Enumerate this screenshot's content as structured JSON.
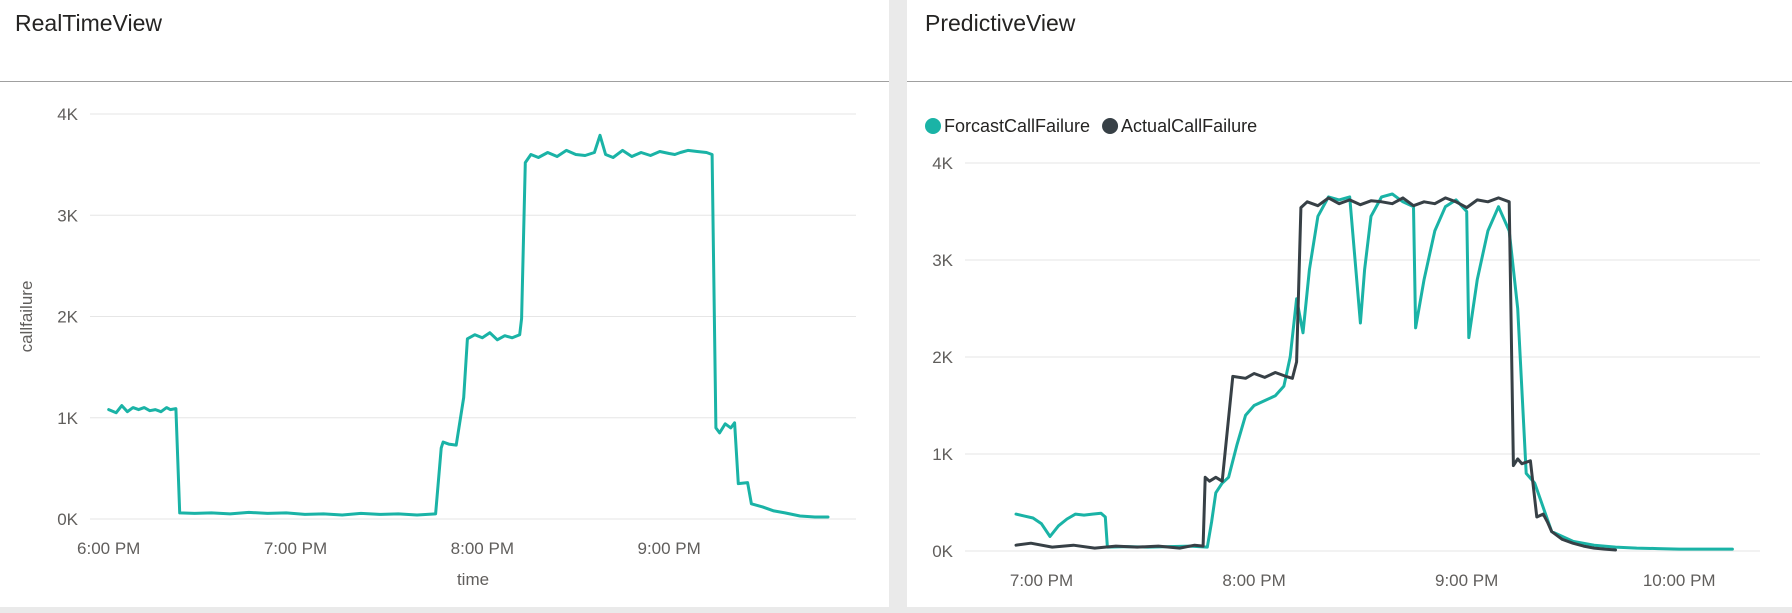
{
  "colors": {
    "forecast": "#1ab3a6",
    "actual": "#374046"
  },
  "chart_data": [
    {
      "type": "line",
      "title": "RealTimeView",
      "xlabel": "time",
      "ylabel": "callfailure",
      "x_tick_labels": [
        "6:00 PM",
        "7:00 PM",
        "8:00 PM",
        "9:00 PM"
      ],
      "x_tick_hours": [
        18,
        19,
        20,
        21
      ],
      "y_tick_labels": [
        "0K",
        "1K",
        "2K",
        "3K",
        "4K"
      ],
      "y_ticks": [
        0,
        1000,
        2000,
        3000,
        4000
      ],
      "xlim": [
        17.9,
        22.0
      ],
      "ylim": [
        0,
        4000
      ],
      "grid": true,
      "legend": "none",
      "series": [
        {
          "color": "#1ab3a6",
          "x": [
            18.0,
            18.04,
            18.07,
            18.1,
            18.13,
            18.16,
            18.19,
            18.22,
            18.25,
            18.28,
            18.31,
            18.33,
            18.36,
            18.38,
            18.46,
            18.55,
            18.65,
            18.75,
            18.85,
            18.95,
            19.05,
            19.15,
            19.25,
            19.35,
            19.45,
            19.55,
            19.65,
            19.75,
            19.78,
            19.79,
            19.82,
            19.86,
            19.9,
            19.92,
            19.96,
            20.0,
            20.04,
            20.08,
            20.12,
            20.16,
            20.2,
            20.21,
            20.23,
            20.26,
            20.3,
            20.35,
            20.4,
            20.45,
            20.5,
            20.55,
            20.6,
            20.63,
            20.66,
            20.7,
            20.75,
            20.8,
            20.85,
            20.9,
            20.95,
            21.0,
            21.03,
            21.06,
            21.1,
            21.15,
            21.2,
            21.23,
            21.25,
            21.27,
            21.3,
            21.33,
            21.35,
            21.37,
            21.42,
            21.44,
            21.5,
            21.56,
            21.62,
            21.7,
            21.78,
            21.85
          ],
          "y": [
            1080,
            1050,
            1120,
            1060,
            1100,
            1080,
            1100,
            1070,
            1080,
            1060,
            1100,
            1080,
            1090,
            60,
            55,
            60,
            50,
            65,
            55,
            60,
            45,
            50,
            40,
            55,
            45,
            50,
            40,
            50,
            700,
            760,
            740,
            730,
            1200,
            1780,
            1820,
            1790,
            1840,
            1770,
            1810,
            1790,
            1820,
            1980,
            3520,
            3600,
            3570,
            3620,
            3580,
            3640,
            3600,
            3590,
            3620,
            3790,
            3600,
            3570,
            3640,
            3580,
            3620,
            3590,
            3630,
            3610,
            3600,
            3620,
            3640,
            3630,
            3620,
            3600,
            900,
            850,
            940,
            900,
            950,
            350,
            360,
            150,
            120,
            80,
            60,
            30,
            20,
            20
          ]
        }
      ]
    },
    {
      "type": "line",
      "title": "PredictiveView",
      "xlabel": "",
      "ylabel": "",
      "x_tick_labels": [
        "7:00 PM",
        "8:00 PM",
        "9:00 PM",
        "10:00 PM"
      ],
      "x_tick_hours": [
        19,
        20,
        21,
        22
      ],
      "y_tick_labels": [
        "0K",
        "1K",
        "2K",
        "3K",
        "4K"
      ],
      "y_ticks": [
        0,
        1000,
        2000,
        3000,
        4000
      ],
      "xlim": [
        18.64,
        22.38
      ],
      "ylim": [
        0,
        4000
      ],
      "grid": true,
      "legend": "top-left",
      "series": [
        {
          "name": "ForcastCallFailure",
          "color": "#1ab3a6",
          "x": [
            18.88,
            18.92,
            18.96,
            19.0,
            19.04,
            19.08,
            19.12,
            19.16,
            19.2,
            19.24,
            19.28,
            19.3,
            19.31,
            19.4,
            19.5,
            19.6,
            19.7,
            19.78,
            19.8,
            19.82,
            19.85,
            19.88,
            19.92,
            19.96,
            20.0,
            20.05,
            20.1,
            20.14,
            20.17,
            20.2,
            20.23,
            20.26,
            20.3,
            20.35,
            20.4,
            20.45,
            20.5,
            20.52,
            20.55,
            20.6,
            20.65,
            20.7,
            20.75,
            20.76,
            20.8,
            20.85,
            20.9,
            20.95,
            21.0,
            21.01,
            21.05,
            21.1,
            21.15,
            21.2,
            21.24,
            21.28,
            21.32,
            21.36,
            21.4,
            21.5,
            21.6,
            21.7,
            21.8,
            21.9,
            22.0,
            22.1,
            22.25
          ],
          "y": [
            380,
            360,
            340,
            280,
            150,
            260,
            330,
            380,
            370,
            380,
            390,
            350,
            40,
            45,
            40,
            45,
            50,
            40,
            300,
            600,
            700,
            760,
            1100,
            1400,
            1500,
            1550,
            1600,
            1700,
            2000,
            2600,
            2250,
            2900,
            3450,
            3650,
            3620,
            3650,
            2350,
            2900,
            3450,
            3650,
            3680,
            3600,
            3550,
            2300,
            2800,
            3300,
            3550,
            3620,
            3500,
            2200,
            2800,
            3300,
            3550,
            3300,
            2500,
            800,
            700,
            450,
            200,
            100,
            60,
            40,
            30,
            25,
            20,
            20,
            20
          ]
        },
        {
          "name": "ActualCallFailure",
          "color": "#374046",
          "x": [
            18.88,
            18.95,
            19.05,
            19.15,
            19.25,
            19.35,
            19.45,
            19.55,
            19.65,
            19.72,
            19.76,
            19.77,
            19.79,
            19.82,
            19.85,
            19.9,
            19.96,
            20.0,
            20.05,
            20.1,
            20.15,
            20.18,
            20.2,
            20.22,
            20.25,
            20.3,
            20.35,
            20.4,
            20.45,
            20.5,
            20.55,
            20.6,
            20.65,
            20.7,
            20.75,
            20.8,
            20.85,
            20.9,
            20.95,
            21.0,
            21.05,
            21.1,
            21.15,
            21.2,
            21.22,
            21.24,
            21.26,
            21.3,
            21.33,
            21.36,
            21.38,
            21.4,
            21.45,
            21.5,
            21.55,
            21.6,
            21.65,
            21.7
          ],
          "y": [
            60,
            80,
            40,
            60,
            30,
            50,
            40,
            50,
            30,
            60,
            50,
            760,
            720,
            760,
            720,
            1800,
            1780,
            1830,
            1790,
            1840,
            1800,
            1780,
            1950,
            3540,
            3600,
            3560,
            3640,
            3580,
            3620,
            3570,
            3610,
            3600,
            3580,
            3640,
            3560,
            3600,
            3580,
            3640,
            3600,
            3540,
            3620,
            3600,
            3640,
            3600,
            880,
            950,
            900,
            930,
            350,
            380,
            300,
            200,
            120,
            80,
            50,
            30,
            20,
            10
          ]
        }
      ]
    }
  ]
}
